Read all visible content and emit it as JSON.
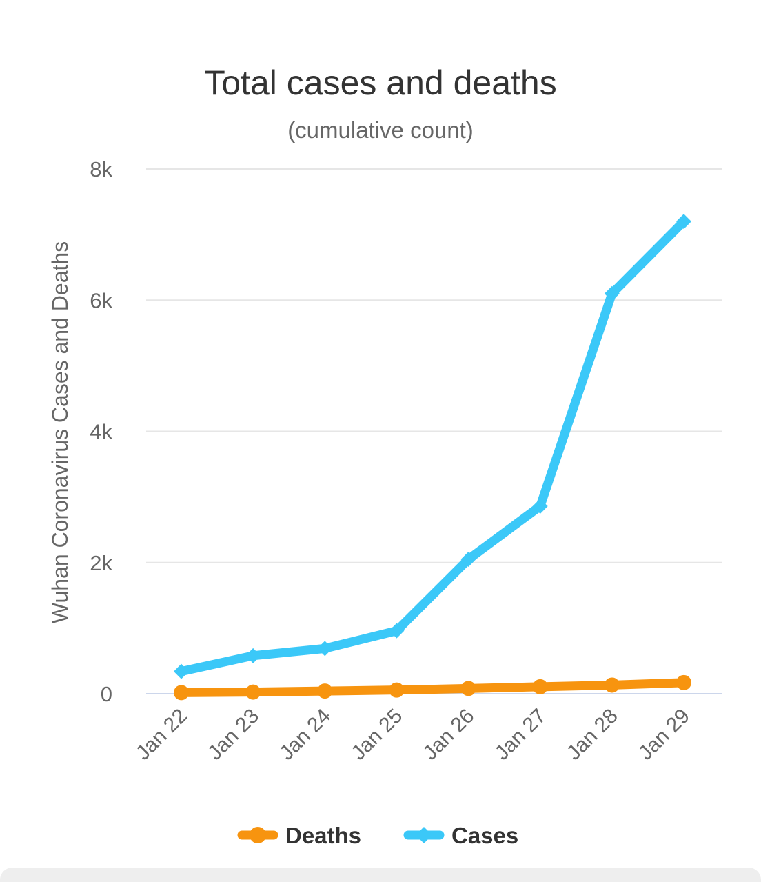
{
  "chart_data": {
    "type": "line",
    "title": "Total cases and deaths",
    "subtitle": "(cumulative count)",
    "ylabel": "Wuhan Coronavirus Cases and Deaths",
    "xlabel": "",
    "categories": [
      "Jan 22",
      "Jan 23",
      "Jan 24",
      "Jan 25",
      "Jan 26",
      "Jan 27",
      "Jan 28",
      "Jan 29"
    ],
    "ylim": [
      0,
      8000
    ],
    "yticks": [
      0,
      2000,
      4000,
      6000,
      8000
    ],
    "ytick_labels": [
      "0",
      "2k",
      "4k",
      "6k",
      "8k"
    ],
    "grid": true,
    "legend": "bottom-center",
    "series": [
      {
        "name": "Deaths",
        "values": [
          17,
          25,
          41,
          56,
          80,
          106,
          132,
          170
        ],
        "color": "#f7940f",
        "marker": "circle"
      },
      {
        "name": "Cases",
        "values": [
          340,
          580,
          690,
          960,
          2050,
          2860,
          6100,
          7200
        ],
        "color": "#3bc8f8",
        "marker": "diamond"
      }
    ]
  }
}
